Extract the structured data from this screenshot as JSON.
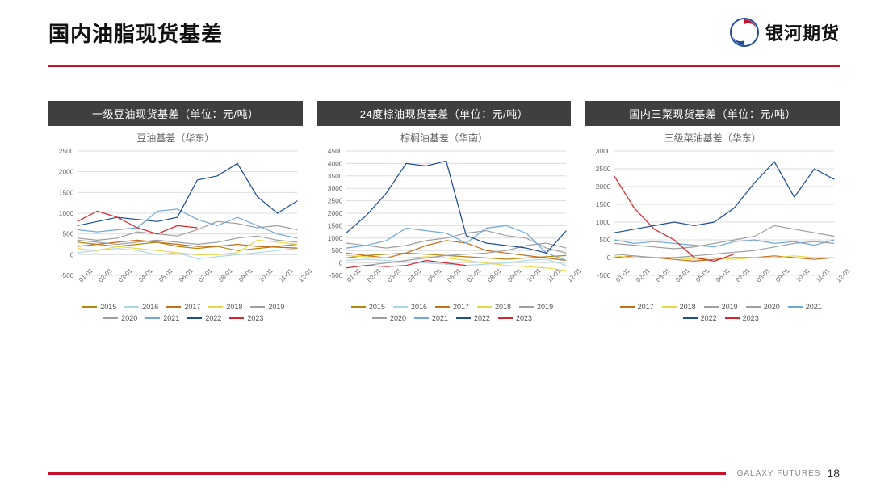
{
  "slide": {
    "title": "国内油脂现货基差",
    "brand_name": "银河期货",
    "footer_label": "GALAXY FUTURES",
    "page_number": "18",
    "accent_color": "#c8102e",
    "text_color": "#111111",
    "background": "#ffffff"
  },
  "charts": [
    {
      "card_title": "一级豆油现货基差（单位：元/吨）",
      "subtitle": "豆油基差（华东）",
      "type": "line",
      "ylim": [
        -500,
        2500
      ],
      "ytick_step": 500,
      "grid_color": "#dddddd",
      "x_labels": [
        "01-01",
        "02-01",
        "03-01",
        "04-01",
        "05-01",
        "06-01",
        "07-01",
        "08-01",
        "09-01",
        "10-01",
        "11-01",
        "12-01"
      ],
      "series": [
        {
          "name": "2015",
          "color": "#b8860b",
          "values": [
            300,
            250,
            200,
            250,
            300,
            200,
            150,
            200,
            100,
            150,
            200,
            250
          ]
        },
        {
          "name": "2016",
          "color": "#add8e6",
          "values": [
            50,
            100,
            150,
            100,
            0,
            50,
            -100,
            -50,
            0,
            50,
            100,
            150
          ]
        },
        {
          "name": "2017",
          "color": "#c46f1a",
          "values": [
            200,
            250,
            300,
            350,
            300,
            250,
            200,
            200,
            250,
            200,
            180,
            160
          ]
        },
        {
          "name": "2018",
          "color": "#e8d84a",
          "values": [
            150,
            100,
            200,
            150,
            100,
            50,
            0,
            0,
            50,
            350,
            300,
            250
          ]
        },
        {
          "name": "2019",
          "color": "#9aa0a6",
          "values": [
            350,
            300,
            250,
            300,
            350,
            300,
            250,
            300,
            400,
            450,
            350,
            300
          ]
        },
        {
          "name": "2020",
          "color": "#9e9e9e",
          "values": [
            400,
            350,
            400,
            550,
            500,
            450,
            600,
            800,
            750,
            650,
            700,
            600
          ]
        },
        {
          "name": "2021",
          "color": "#6fa8dc",
          "values": [
            600,
            550,
            600,
            650,
            1050,
            1100,
            850,
            700,
            900,
            700,
            500,
            400
          ]
        },
        {
          "name": "2022",
          "color": "#1f4e96",
          "values": [
            700,
            800,
            900,
            850,
            800,
            900,
            1800,
            1900,
            2200,
            1400,
            1000,
            1300
          ]
        },
        {
          "name": "2023",
          "color": "#d9262e",
          "values": [
            800,
            1050,
            900,
            650,
            500,
            700,
            650,
            null,
            null,
            null,
            null,
            null
          ]
        }
      ]
    },
    {
      "card_title": "24度棕油现货基差（单位：元/吨）",
      "subtitle": "棕榈油基差（华南）",
      "type": "line",
      "ylim": [
        -500,
        4500
      ],
      "ytick_step": 500,
      "grid_color": "#dddddd",
      "x_labels": [
        "01-01",
        "02-01",
        "03-01",
        "04-01",
        "05-01",
        "06-01",
        "07-01",
        "08-01",
        "09-01",
        "10-01",
        "11-01",
        "12-01"
      ],
      "series": [
        {
          "name": "2015",
          "color": "#b8860b",
          "values": [
            200,
            300,
            350,
            400,
            350,
            300,
            250,
            200,
            150,
            200,
            250,
            300
          ]
        },
        {
          "name": "2016",
          "color": "#add8e6",
          "values": [
            100,
            150,
            100,
            50,
            0,
            -50,
            -100,
            -50,
            0,
            100,
            150,
            -100
          ]
        },
        {
          "name": "2017",
          "color": "#c46f1a",
          "values": [
            400,
            300,
            200,
            400,
            700,
            900,
            800,
            500,
            400,
            300,
            200,
            100
          ]
        },
        {
          "name": "2018",
          "color": "#e8d84a",
          "values": [
            300,
            250,
            200,
            200,
            250,
            200,
            100,
            0,
            -100,
            -150,
            -200,
            -300
          ]
        },
        {
          "name": "2019",
          "color": "#9aa0a6",
          "values": [
            -200,
            -100,
            0,
            100,
            200,
            300,
            350,
            400,
            500,
            700,
            800,
            600
          ]
        },
        {
          "name": "2020",
          "color": "#9e9e9e",
          "values": [
            800,
            700,
            600,
            700,
            900,
            1000,
            1200,
            1300,
            1100,
            1000,
            600,
            400
          ]
        },
        {
          "name": "2021",
          "color": "#6fa8dc",
          "values": [
            600,
            700,
            900,
            1400,
            1300,
            1200,
            800,
            1400,
            1500,
            1200,
            400,
            100
          ]
        },
        {
          "name": "2022",
          "color": "#1f4e96",
          "values": [
            1200,
            1900,
            2800,
            4000,
            3900,
            4100,
            1100,
            800,
            700,
            600,
            400,
            1300
          ]
        },
        {
          "name": "2023",
          "color": "#d9262e",
          "values": [
            -200,
            -100,
            -150,
            -100,
            100,
            0,
            -100,
            null,
            null,
            null,
            null,
            null
          ]
        }
      ]
    },
    {
      "card_title": "国内三菜现货基差（单位：元/吨）",
      "subtitle": "三级菜油基差（华东）",
      "type": "line",
      "ylim": [
        -500,
        3000
      ],
      "ytick_step": 500,
      "grid_color": "#dddddd",
      "x_labels": [
        "01-01",
        "02-01",
        "03-01",
        "04-01",
        "05-01",
        "06-01",
        "07-01",
        "08-01",
        "09-01",
        "10-01",
        "11-01",
        "12-01"
      ],
      "series": [
        {
          "name": "2017",
          "color": "#c46f1a",
          "values": [
            0,
            50,
            0,
            -50,
            -100,
            -50,
            0,
            0,
            50,
            0,
            -50,
            0
          ]
        },
        {
          "name": "2018",
          "color": "#e8d84a",
          "values": [
            50,
            0,
            0,
            0,
            -50,
            0,
            -50,
            0,
            0,
            50,
            0,
            0
          ]
        },
        {
          "name": "2019",
          "color": "#9aa0a6",
          "values": [
            100,
            50,
            0,
            0,
            50,
            100,
            150,
            200,
            300,
            400,
            450,
            400
          ]
        },
        {
          "name": "2020",
          "color": "#9e9e9e",
          "values": [
            400,
            350,
            300,
            250,
            300,
            400,
            500,
            600,
            900,
            800,
            700,
            600
          ]
        },
        {
          "name": "2021",
          "color": "#6fa8dc",
          "values": [
            500,
            400,
            450,
            400,
            350,
            300,
            450,
            500,
            400,
            450,
            350,
            500
          ]
        },
        {
          "name": "2022",
          "color": "#1f4e96",
          "values": [
            700,
            800,
            900,
            1000,
            900,
            1000,
            1400,
            2100,
            2700,
            1700,
            2500,
            2200
          ]
        },
        {
          "name": "2023",
          "color": "#d9262e",
          "values": [
            2300,
            1400,
            800,
            500,
            0,
            -100,
            100,
            null,
            null,
            null,
            null,
            null
          ]
        }
      ]
    }
  ]
}
